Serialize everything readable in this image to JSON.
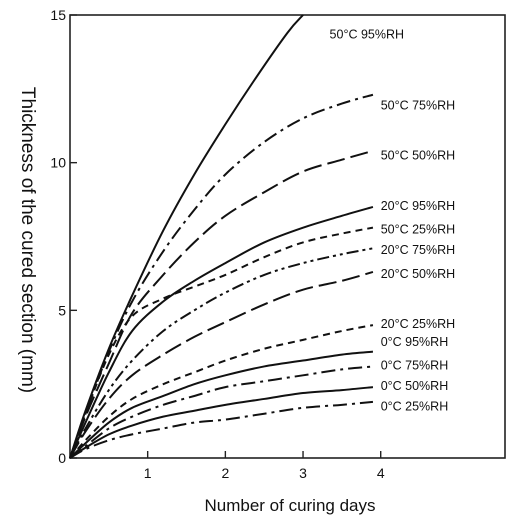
{
  "chart_data": {
    "type": "line",
    "xlabel": "Number of curing days",
    "ylabel": "Thickness of the cured section (mm)",
    "xlim": [
      0,
      5.6
    ],
    "ylim": [
      0,
      15
    ],
    "xticks": [
      1,
      2,
      3,
      4
    ],
    "yticks": [
      0,
      5,
      10,
      15
    ],
    "grid": false,
    "legend": "curve labels placed at right end of each curve",
    "series": [
      {
        "name": "50°C  95%RH",
        "dash": "solid",
        "points": [
          [
            0,
            0
          ],
          [
            0.2,
            1.6
          ],
          [
            0.5,
            3.7
          ],
          [
            0.8,
            5.5
          ],
          [
            1.2,
            7.7
          ],
          [
            1.6,
            9.6
          ],
          [
            2,
            11.3
          ],
          [
            2.4,
            12.9
          ],
          [
            2.8,
            14.4
          ],
          [
            3,
            15
          ]
        ]
      },
      {
        "name": "50°C  75%RH",
        "dash": "dashdot",
        "points": [
          [
            0,
            0
          ],
          [
            0.2,
            1.5
          ],
          [
            0.5,
            3.6
          ],
          [
            0.8,
            5.3
          ],
          [
            1.2,
            7.0
          ],
          [
            1.6,
            8.4
          ],
          [
            2,
            9.6
          ],
          [
            2.5,
            10.7
          ],
          [
            3,
            11.5
          ],
          [
            3.5,
            12.0
          ],
          [
            3.9,
            12.3
          ]
        ]
      },
      {
        "name": "50°C  50%RH",
        "dash": "longdash",
        "points": [
          [
            0,
            0
          ],
          [
            0.2,
            1.4
          ],
          [
            0.5,
            3.2
          ],
          [
            0.8,
            4.9
          ],
          [
            1.2,
            6.2
          ],
          [
            1.6,
            7.3
          ],
          [
            2,
            8.2
          ],
          [
            2.5,
            9.0
          ],
          [
            3,
            9.7
          ],
          [
            3.5,
            10.1
          ],
          [
            3.9,
            10.4
          ]
        ]
      },
      {
        "name": "20°C  95%RH",
        "dash": "solid",
        "points": [
          [
            0,
            0
          ],
          [
            0.2,
            1.2
          ],
          [
            0.5,
            2.9
          ],
          [
            0.8,
            4.3
          ],
          [
            1.2,
            5.3
          ],
          [
            1.6,
            6.0
          ],
          [
            2,
            6.6
          ],
          [
            2.5,
            7.3
          ],
          [
            3,
            7.8
          ],
          [
            3.5,
            8.2
          ],
          [
            3.9,
            8.5
          ]
        ]
      },
      {
        "name": "50°C  25%RH",
        "dash": "shortdash",
        "points": [
          [
            0,
            0
          ],
          [
            0.2,
            1.5
          ],
          [
            0.5,
            3.5
          ],
          [
            0.8,
            4.8
          ],
          [
            1.2,
            5.4
          ],
          [
            1.6,
            5.8
          ],
          [
            2,
            6.2
          ],
          [
            2.5,
            6.8
          ],
          [
            3,
            7.3
          ],
          [
            3.5,
            7.6
          ],
          [
            3.9,
            7.8
          ]
        ]
      },
      {
        "name": "20°C  75%RH",
        "dash": "dashdotdot",
        "points": [
          [
            0,
            0
          ],
          [
            0.2,
            1.0
          ],
          [
            0.5,
            2.3
          ],
          [
            0.8,
            3.3
          ],
          [
            1.2,
            4.3
          ],
          [
            1.6,
            5.0
          ],
          [
            2,
            5.6
          ],
          [
            2.5,
            6.2
          ],
          [
            3,
            6.6
          ],
          [
            3.5,
            6.9
          ],
          [
            3.9,
            7.1
          ]
        ]
      },
      {
        "name": "20°C  50%RH",
        "dash": "longdash",
        "points": [
          [
            0,
            0
          ],
          [
            0.2,
            0.9
          ],
          [
            0.5,
            2.0
          ],
          [
            0.8,
            2.8
          ],
          [
            1.2,
            3.5
          ],
          [
            1.6,
            4.1
          ],
          [
            2,
            4.6
          ],
          [
            2.5,
            5.2
          ],
          [
            3,
            5.7
          ],
          [
            3.5,
            6.0
          ],
          [
            3.9,
            6.3
          ]
        ]
      },
      {
        "name": "20°C  25%RH",
        "dash": "shortdash",
        "points": [
          [
            0,
            0
          ],
          [
            0.2,
            0.6
          ],
          [
            0.5,
            1.4
          ],
          [
            0.8,
            2.0
          ],
          [
            1.2,
            2.5
          ],
          [
            1.6,
            2.9
          ],
          [
            2,
            3.3
          ],
          [
            2.5,
            3.7
          ],
          [
            3,
            4.0
          ],
          [
            3.5,
            4.3
          ],
          [
            3.9,
            4.5
          ]
        ]
      },
      {
        "name": "0°C  95%RH",
        "dash": "solid",
        "points": [
          [
            0,
            0
          ],
          [
            0.2,
            0.5
          ],
          [
            0.5,
            1.2
          ],
          [
            0.8,
            1.7
          ],
          [
            1.2,
            2.1
          ],
          [
            1.6,
            2.5
          ],
          [
            2,
            2.8
          ],
          [
            2.5,
            3.1
          ],
          [
            3,
            3.3
          ],
          [
            3.5,
            3.5
          ],
          [
            3.9,
            3.6
          ]
        ]
      },
      {
        "name": "0°C  75%RH",
        "dash": "dashdot",
        "points": [
          [
            0,
            0
          ],
          [
            0.2,
            0.4
          ],
          [
            0.5,
            1.0
          ],
          [
            0.8,
            1.4
          ],
          [
            1.2,
            1.8
          ],
          [
            1.6,
            2.1
          ],
          [
            2,
            2.4
          ],
          [
            2.5,
            2.6
          ],
          [
            3,
            2.8
          ],
          [
            3.5,
            3.0
          ],
          [
            3.9,
            3.1
          ]
        ]
      },
      {
        "name": "0°C  50%RH",
        "dash": "solid",
        "points": [
          [
            0,
            0
          ],
          [
            0.2,
            0.35
          ],
          [
            0.5,
            0.8
          ],
          [
            0.8,
            1.1
          ],
          [
            1.2,
            1.4
          ],
          [
            1.6,
            1.6
          ],
          [
            2,
            1.8
          ],
          [
            2.5,
            2.0
          ],
          [
            3,
            2.2
          ],
          [
            3.5,
            2.3
          ],
          [
            3.9,
            2.4
          ]
        ]
      },
      {
        "name": "0°C  25%RH",
        "dash": "dashdot",
        "points": [
          [
            0,
            0
          ],
          [
            0.2,
            0.3
          ],
          [
            0.5,
            0.6
          ],
          [
            0.8,
            0.8
          ],
          [
            1.2,
            1.0
          ],
          [
            1.6,
            1.2
          ],
          [
            2,
            1.3
          ],
          [
            2.5,
            1.5
          ],
          [
            3,
            1.7
          ],
          [
            3.5,
            1.8
          ],
          [
            3.9,
            1.9
          ]
        ]
      }
    ],
    "curve_labels": [
      {
        "text": "50°C  95%RH",
        "x": 4.5,
        "y": 14.2
      },
      {
        "text": "50°C  75%RH",
        "x": 4.0,
        "y": 11.8
      },
      {
        "text": "50°C  50%RH",
        "x": 4.0,
        "y": 10.1
      },
      {
        "text": "20°C  95%RH",
        "x": 4.0,
        "y": 8.4
      },
      {
        "text": "50°C  25%RH",
        "x": 4.0,
        "y": 7.6
      },
      {
        "text": "20°C  75%RH",
        "x": 4.0,
        "y": 6.9
      },
      {
        "text": "20°C  50%RH",
        "x": 4.0,
        "y": 6.1
      },
      {
        "text": "20°C  25%RH",
        "x": 4.0,
        "y": 4.4
      },
      {
        "text": "0°C  95%RH",
        "x": 4.0,
        "y": 3.8
      },
      {
        "text": "0°C  75%RH",
        "x": 4.0,
        "y": 3.0
      },
      {
        "text": "0°C  50%RH",
        "x": 4.0,
        "y": 2.3
      },
      {
        "text": "0°C  25%RH",
        "x": 4.0,
        "y": 1.6
      }
    ]
  }
}
